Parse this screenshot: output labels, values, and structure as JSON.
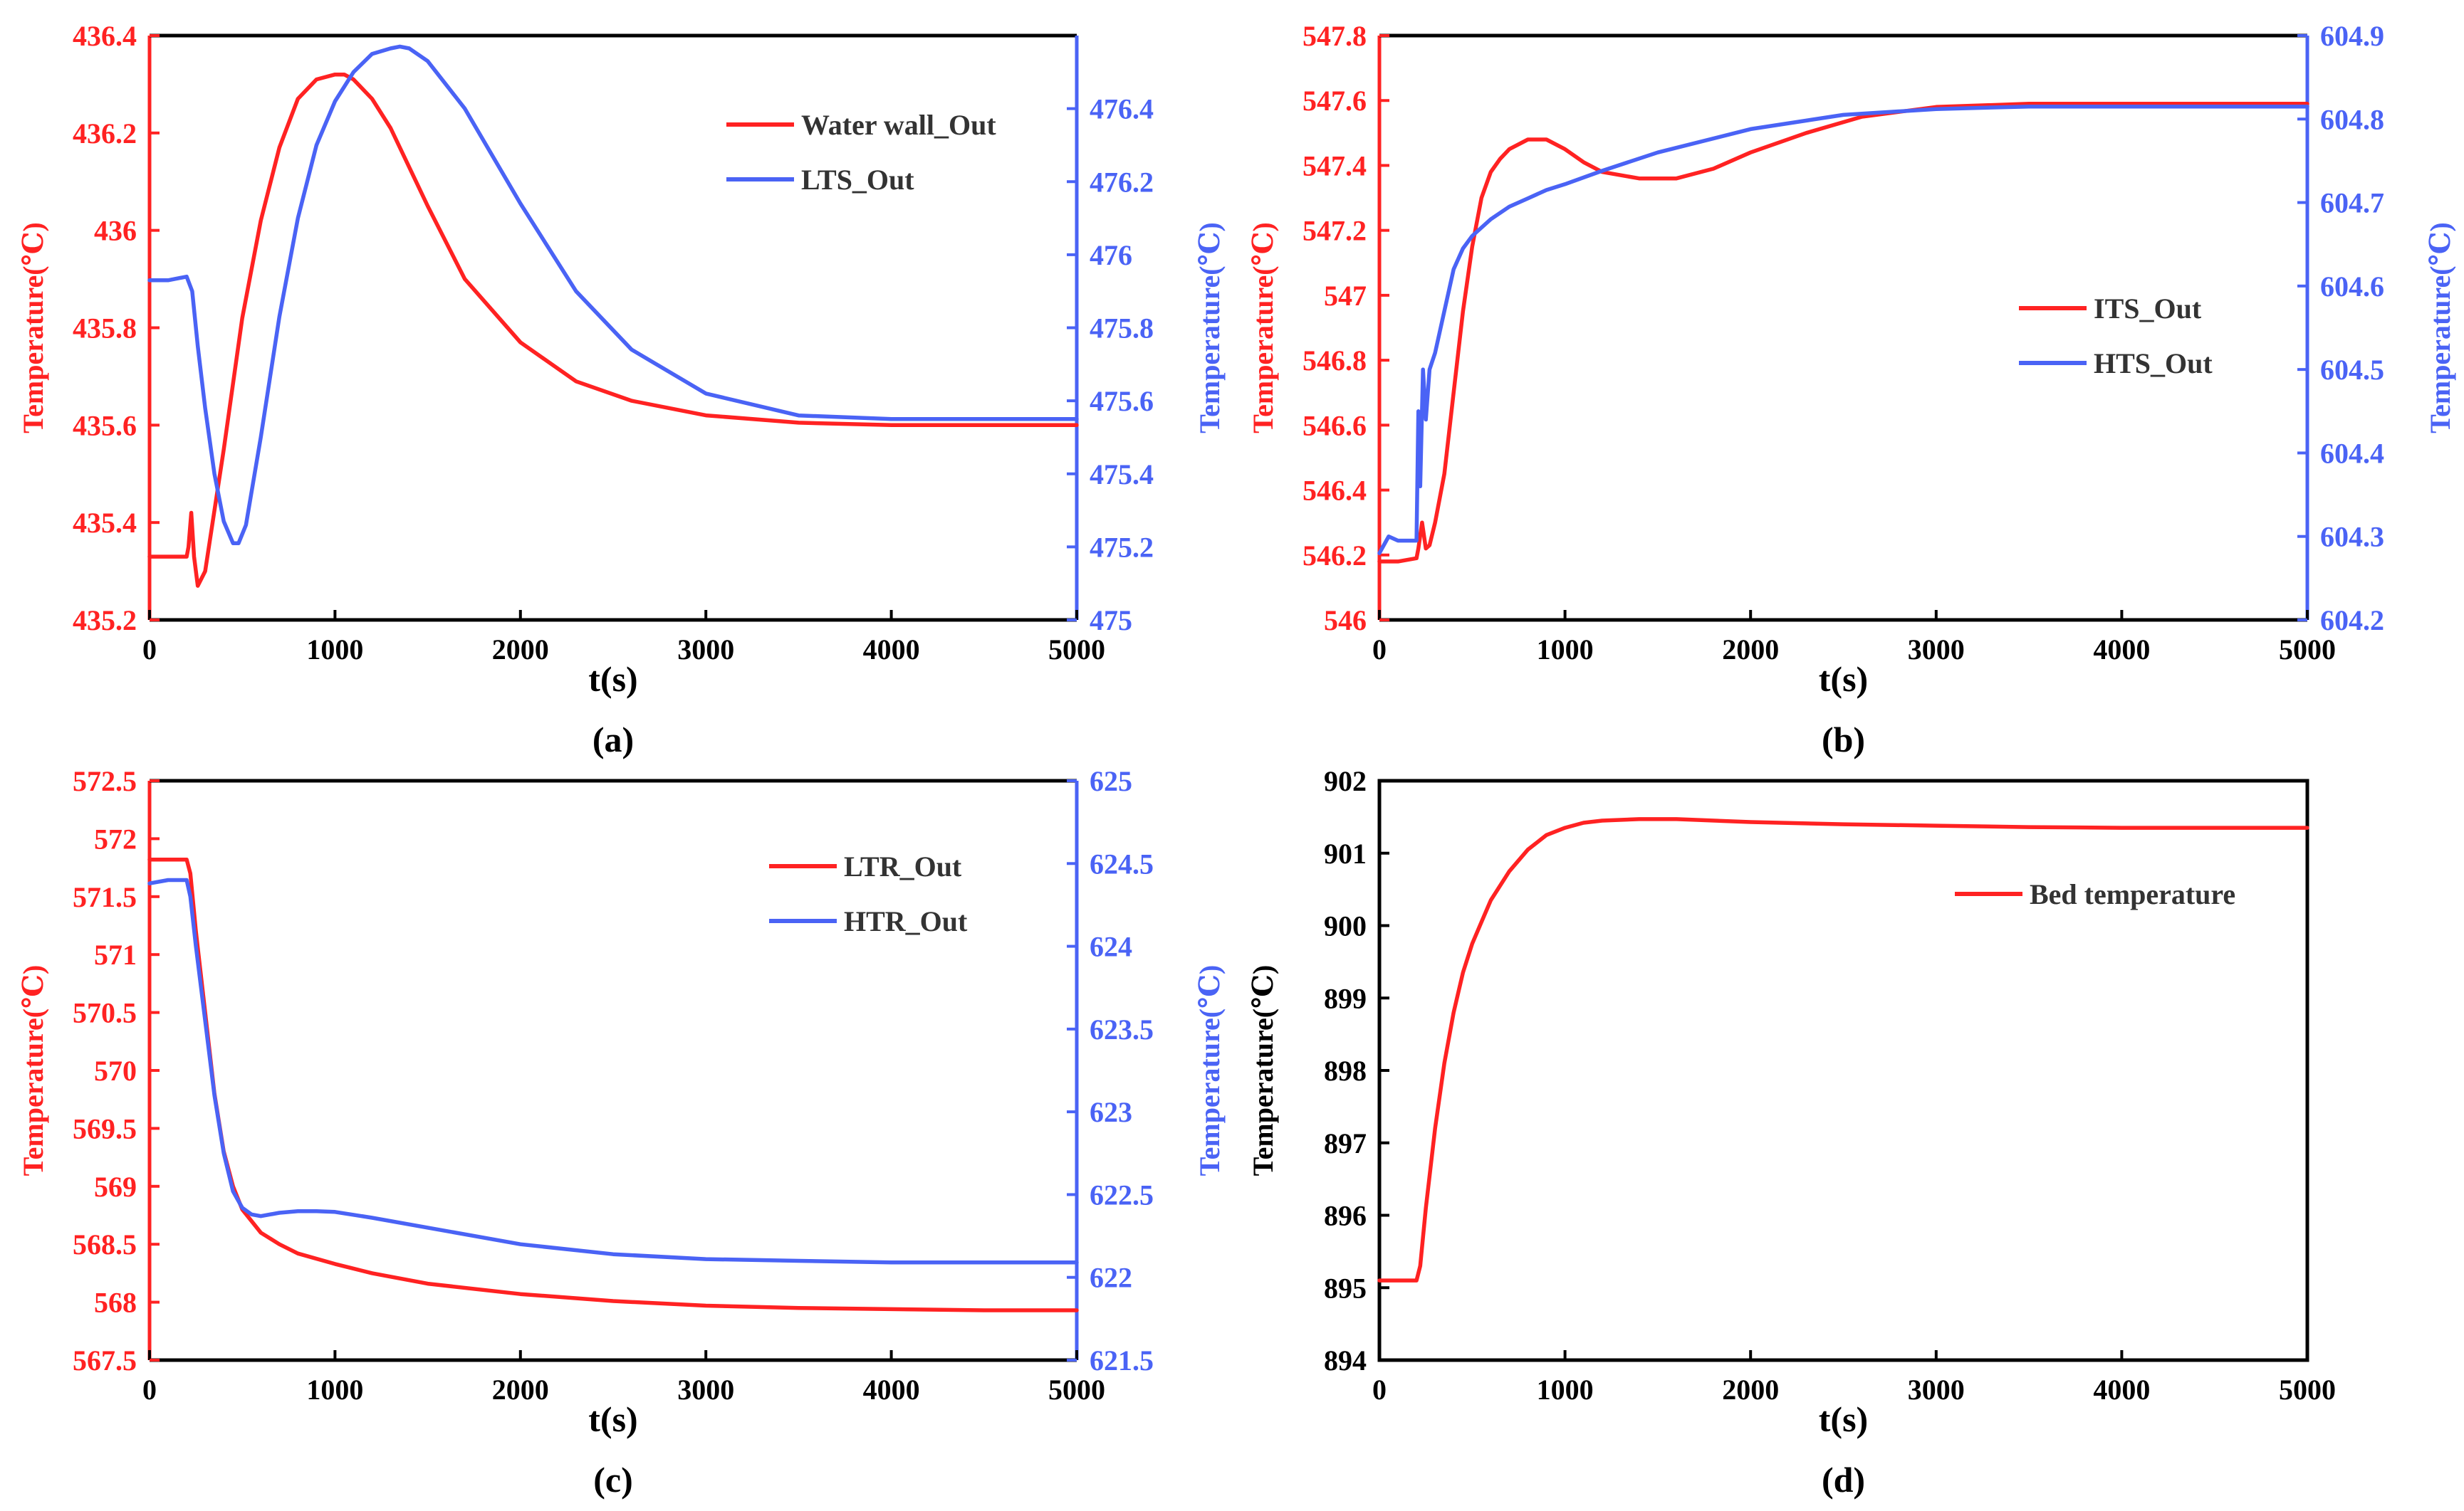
{
  "colors": {
    "red": "#ff2222",
    "blue": "#4a63f5",
    "black": "#000000"
  },
  "chart_data": [
    {
      "id": "a",
      "type": "line",
      "caption": "(a)",
      "xlabel": "t(s)",
      "ylabel_left": "Temperature(℃)",
      "ylabel_right": "Temperature(℃)",
      "xlim": [
        0,
        5000
      ],
      "xticks": [
        0,
        1000,
        2000,
        3000,
        4000,
        5000
      ],
      "ylim_left": [
        435.2,
        436.4
      ],
      "yticks_left": [
        "435.2",
        "435.4",
        "435.6",
        "435.8",
        "436",
        "436.2",
        "436.4"
      ],
      "ylim_right": [
        475,
        476.6
      ],
      "yticks_right": [
        "475",
        "475.2",
        "475.4",
        "475.6",
        "475.8",
        "476",
        "476.2",
        "476.4"
      ],
      "left_color": "#ff2222",
      "right_color": "#4a63f5",
      "legend": {
        "position": "top-right"
      },
      "series": [
        {
          "name": "Water wall_Out",
          "axis": "left",
          "color": "#ff2222",
          "x": [
            0,
            180,
            200,
            210,
            225,
            240,
            260,
            300,
            400,
            500,
            600,
            700,
            800,
            900,
            1000,
            1050,
            1100,
            1200,
            1300,
            1500,
            1700,
            2000,
            2300,
            2600,
            3000,
            3500,
            4000,
            4500,
            5000
          ],
          "y": [
            435.33,
            435.33,
            435.33,
            435.35,
            435.42,
            435.33,
            435.27,
            435.3,
            435.55,
            435.82,
            436.02,
            436.17,
            436.27,
            436.31,
            436.32,
            436.32,
            436.31,
            436.27,
            436.21,
            436.05,
            435.9,
            435.77,
            435.69,
            435.65,
            435.62,
            435.605,
            435.6,
            435.6,
            435.6
          ]
        },
        {
          "name": "LTS_Out",
          "axis": "right",
          "color": "#4a63f5",
          "x": [
            0,
            100,
            200,
            230,
            260,
            300,
            350,
            400,
            450,
            480,
            520,
            600,
            700,
            800,
            900,
            1000,
            1100,
            1200,
            1300,
            1350,
            1400,
            1500,
            1700,
            2000,
            2300,
            2600,
            3000,
            3500,
            4000,
            4500,
            5000
          ],
          "y": [
            475.93,
            475.93,
            475.94,
            475.9,
            475.75,
            475.58,
            475.4,
            475.27,
            475.21,
            475.21,
            475.26,
            475.5,
            475.83,
            476.1,
            476.3,
            476.42,
            476.5,
            476.55,
            476.565,
            476.57,
            476.565,
            476.53,
            476.4,
            476.14,
            475.9,
            475.74,
            475.62,
            475.56,
            475.55,
            475.55,
            475.55
          ]
        }
      ]
    },
    {
      "id": "b",
      "type": "line",
      "caption": "(b)",
      "xlabel": "t(s)",
      "ylabel_left": "Temperature(℃)",
      "ylabel_right": "Temperature(℃)",
      "xlim": [
        0,
        5000
      ],
      "xticks": [
        0,
        1000,
        2000,
        3000,
        4000,
        5000
      ],
      "ylim_left": [
        546,
        547.8
      ],
      "yticks_left": [
        "546",
        "546.2",
        "546.4",
        "546.6",
        "546.8",
        "547",
        "547.2",
        "547.4",
        "547.6",
        "547.8"
      ],
      "ylim_right": [
        604.2,
        604.9
      ],
      "yticks_right": [
        "604.2",
        "604.3",
        "604.4",
        "604.5",
        "604.6",
        "604.7",
        "604.8",
        "604.9"
      ],
      "left_color": "#ff2222",
      "right_color": "#4a63f5",
      "legend": {
        "position": "center-right"
      },
      "series": [
        {
          "name": "ITS_Out",
          "axis": "left",
          "color": "#ff2222",
          "x": [
            0,
            100,
            200,
            210,
            230,
            250,
            270,
            300,
            350,
            400,
            450,
            500,
            550,
            600,
            650,
            700,
            800,
            900,
            1000,
            1100,
            1200,
            1400,
            1600,
            1800,
            2000,
            2300,
            2600,
            3000,
            3500,
            4000,
            4500,
            5000
          ],
          "y": [
            546.18,
            546.18,
            546.19,
            546.22,
            546.3,
            546.22,
            546.23,
            546.3,
            546.45,
            546.7,
            546.95,
            547.15,
            547.3,
            547.38,
            547.42,
            547.45,
            547.48,
            547.48,
            547.45,
            547.41,
            547.38,
            547.36,
            547.36,
            547.39,
            547.44,
            547.5,
            547.55,
            547.58,
            547.59,
            547.59,
            547.59,
            547.59
          ]
        },
        {
          "name": "HTS_Out",
          "axis": "right",
          "color": "#4a63f5",
          "x": [
            0,
            50,
            100,
            200,
            210,
            220,
            235,
            250,
            270,
            300,
            350,
            400,
            450,
            500,
            600,
            700,
            800,
            900,
            1000,
            1200,
            1500,
            2000,
            2500,
            3000,
            3500,
            4000,
            4500,
            5000
          ],
          "y": [
            604.28,
            604.3,
            604.295,
            604.295,
            604.45,
            604.36,
            604.5,
            604.44,
            604.5,
            604.52,
            604.57,
            604.62,
            604.645,
            604.66,
            604.68,
            604.695,
            604.705,
            604.715,
            604.722,
            604.738,
            604.76,
            604.788,
            604.805,
            604.812,
            604.815,
            604.815,
            604.815,
            604.815
          ]
        }
      ]
    },
    {
      "id": "c",
      "type": "line",
      "caption": "(c)",
      "xlabel": "t(s)",
      "ylabel_left": "Temperature(℃)",
      "ylabel_right": "Temperature(℃)",
      "xlim": [
        0,
        5000
      ],
      "xticks": [
        0,
        1000,
        2000,
        3000,
        4000,
        5000
      ],
      "ylim_left": [
        567.5,
        572.5
      ],
      "yticks_left": [
        "567.5",
        "568",
        "568.5",
        "569",
        "569.5",
        "570",
        "570.5",
        "571",
        "571.5",
        "572",
        "572.5"
      ],
      "ylim_right": [
        621.5,
        625
      ],
      "yticks_right": [
        "621.5",
        "622",
        "622.5",
        "623",
        "623.5",
        "624",
        "624.5",
        "625"
      ],
      "left_color": "#ff2222",
      "right_color": "#4a63f5",
      "legend": {
        "position": "top-right"
      },
      "series": [
        {
          "name": "LTR_Out",
          "axis": "left",
          "color": "#ff2222",
          "x": [
            0,
            100,
            200,
            220,
            250,
            300,
            350,
            400,
            450,
            500,
            550,
            600,
            700,
            800,
            1000,
            1200,
            1500,
            2000,
            2500,
            3000,
            3500,
            4000,
            4500,
            5000
          ],
          "y": [
            571.82,
            571.82,
            571.82,
            571.7,
            571.2,
            570.5,
            569.8,
            569.3,
            569.0,
            568.8,
            568.7,
            568.6,
            568.5,
            568.42,
            568.33,
            568.25,
            568.16,
            568.07,
            568.01,
            567.97,
            567.95,
            567.94,
            567.93,
            567.93
          ]
        },
        {
          "name": "HTR_Out",
          "axis": "right",
          "color": "#4a63f5",
          "x": [
            0,
            100,
            200,
            220,
            250,
            300,
            350,
            400,
            450,
            500,
            550,
            600,
            700,
            800,
            900,
            1000,
            1200,
            1500,
            2000,
            2500,
            3000,
            3500,
            4000,
            4500,
            5000
          ],
          "y": [
            624.38,
            624.4,
            624.4,
            624.3,
            624.0,
            623.55,
            623.1,
            622.75,
            622.52,
            622.42,
            622.38,
            622.37,
            622.39,
            622.4,
            622.4,
            622.395,
            622.36,
            622.3,
            622.2,
            622.14,
            622.11,
            622.1,
            622.09,
            622.09,
            622.09
          ]
        }
      ]
    },
    {
      "id": "d",
      "type": "line",
      "caption": "(d)",
      "xlabel": "t(s)",
      "ylabel_left": "Temperature(℃)",
      "xlim": [
        0,
        5000
      ],
      "xticks": [
        0,
        1000,
        2000,
        3000,
        4000,
        5000
      ],
      "ylim_left": [
        894,
        902
      ],
      "yticks_left": [
        "894",
        "895",
        "896",
        "897",
        "898",
        "899",
        "900",
        "901",
        "902"
      ],
      "left_color": "#000000",
      "legend": {
        "position": "top-right"
      },
      "series": [
        {
          "name": "Bed temperature",
          "axis": "left",
          "color": "#ff2222",
          "x": [
            0,
            100,
            200,
            220,
            250,
            300,
            350,
            400,
            450,
            500,
            550,
            600,
            700,
            800,
            900,
            1000,
            1100,
            1200,
            1400,
            1600,
            2000,
            2500,
            3000,
            3500,
            4000,
            5000
          ],
          "y": [
            895.1,
            895.1,
            895.1,
            895.3,
            896.1,
            897.2,
            898.1,
            898.8,
            899.35,
            899.75,
            900.05,
            900.35,
            900.75,
            901.05,
            901.25,
            901.35,
            901.42,
            901.45,
            901.47,
            901.47,
            901.43,
            901.4,
            901.38,
            901.36,
            901.35,
            901.35
          ]
        }
      ]
    }
  ]
}
